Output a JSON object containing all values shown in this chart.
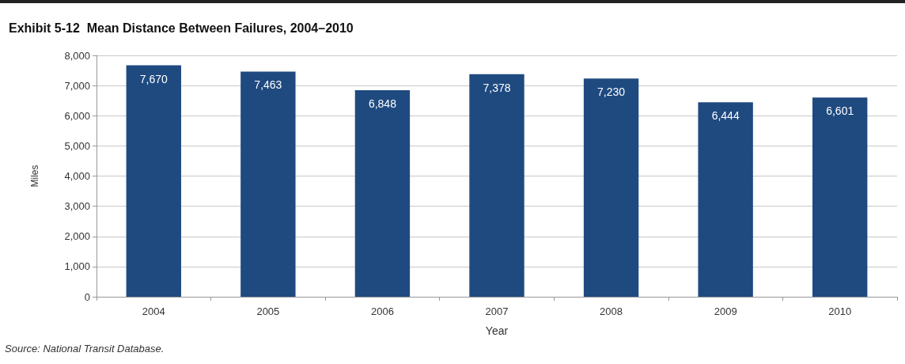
{
  "chart_data": {
    "type": "bar",
    "title": "Exhibit 5-12  Mean Distance Between Failures, 2004–2010",
    "categories": [
      "2004",
      "2005",
      "2006",
      "2007",
      "2008",
      "2009",
      "2010"
    ],
    "values": [
      7670,
      7463,
      6848,
      7378,
      7230,
      6444,
      6601
    ],
    "color": "#1f4a80",
    "value_labels": [
      "7,670",
      "7,463",
      "6,848",
      "7,378",
      "7,230",
      "6,444",
      "6,601"
    ],
    "xlabel": "Year",
    "ylabel": "Miles",
    "ylim": [
      0,
      8000
    ],
    "yticks": [
      0,
      {
        "value": 1000,
        "label": "1,000"
      },
      {
        "value": 2000,
        "label": "2,000"
      },
      {
        "value": 3000,
        "label": "3,000"
      },
      {
        "value": 4000,
        "label": "4,000"
      },
      {
        "value": 5000,
        "label": "5,000"
      },
      {
        "value": 6000,
        "label": "6,000"
      },
      {
        "value": 7000,
        "label": "7,000"
      },
      {
        "value": 8000,
        "label": "8,000"
      }
    ],
    "grid": "y",
    "annotations": [
      "Source: National Transit Database."
    ]
  }
}
